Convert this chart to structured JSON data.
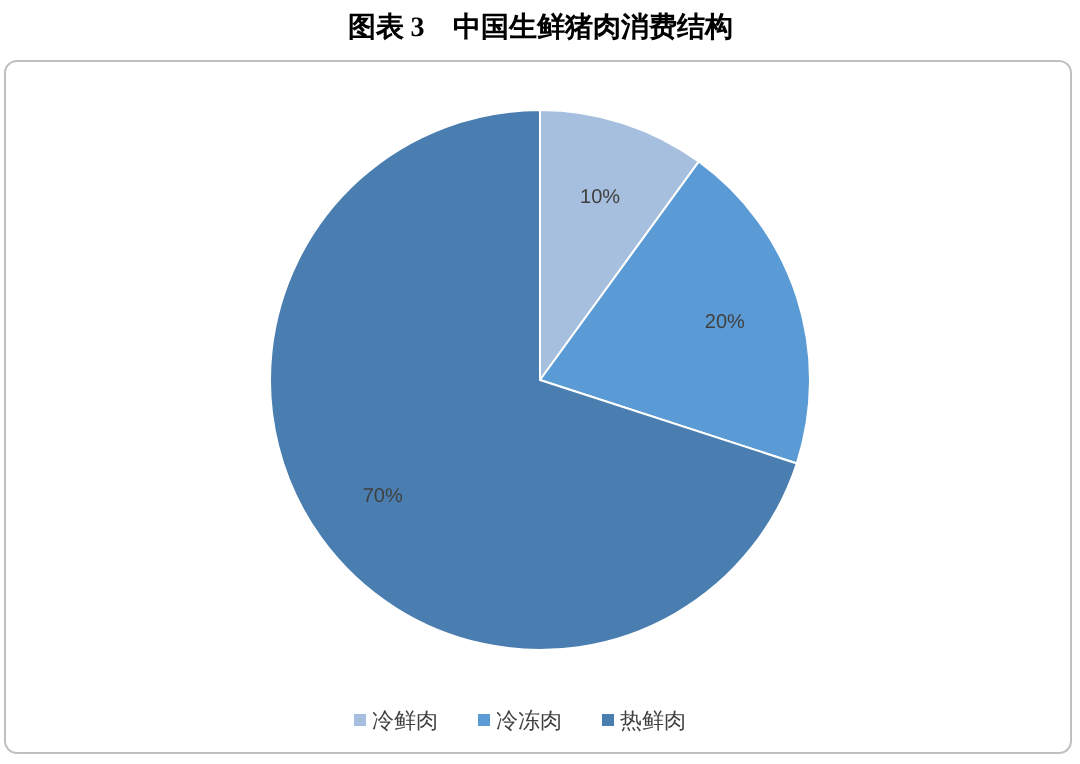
{
  "chart_data": {
    "type": "pie",
    "title": "图表 3　中国生鲜猪肉消费结构",
    "categories": [
      "冷鲜肉",
      "冷冻肉",
      "热鲜肉"
    ],
    "values": [
      10,
      20,
      70
    ],
    "colors": [
      "#a7bfdf",
      "#5b9bd5",
      "#4a7eb0"
    ],
    "value_labels": [
      "10%",
      "20%",
      "70%"
    ],
    "legend": "bottom"
  }
}
